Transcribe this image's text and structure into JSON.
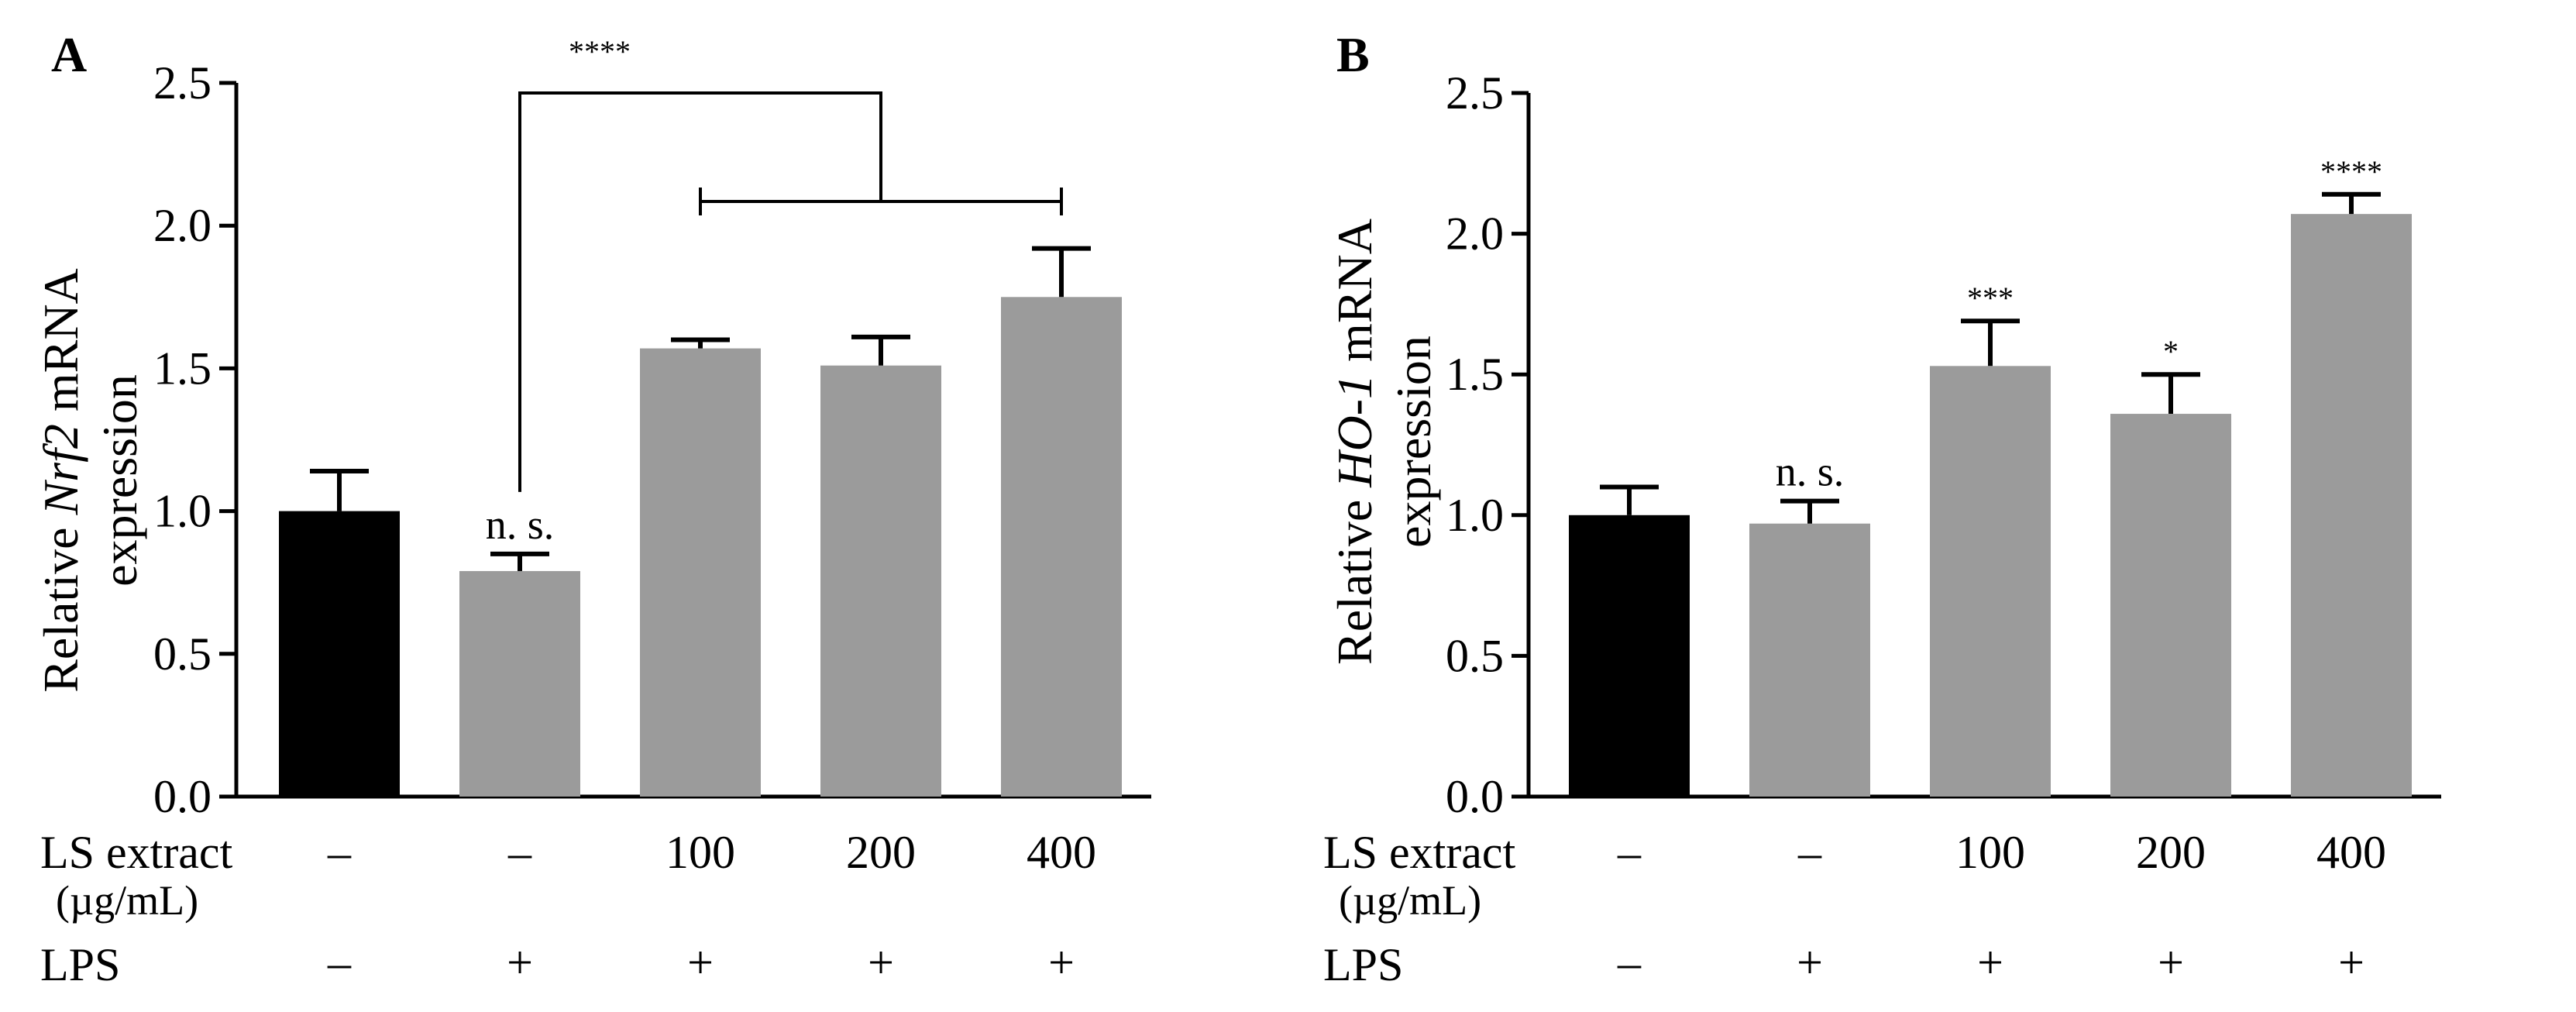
{
  "chart_data": [
    {
      "type": "bar",
      "panel": "A",
      "ylabel_pre": "Relative ",
      "ylabel_gene": "Nrf2",
      "ylabel_post": " mRNA",
      "ylabel_line2": "expression",
      "ylim": [
        0,
        2.5
      ],
      "yticks": [
        "0.0",
        "0.5",
        "1.0",
        "1.5",
        "2.0",
        "2.5"
      ],
      "categories": [
        "1",
        "2",
        "3",
        "4",
        "5"
      ],
      "values": [
        1.0,
        0.79,
        1.57,
        1.51,
        1.75
      ],
      "errors": [
        0.14,
        0.06,
        0.03,
        0.1,
        0.17
      ],
      "colors": [
        "#000000",
        "#9b9b9b",
        "#9b9b9b",
        "#9b9b9b",
        "#9b9b9b"
      ],
      "bar_labels": [
        "",
        "n. s.",
        "",
        "",
        ""
      ],
      "bracket_label": "****",
      "ls_row_label": "LS extract",
      "ls_unit": "(µg/mL)",
      "ls_values": [
        "–",
        "–",
        "100",
        "200",
        "400"
      ],
      "lps_row_label": "LPS",
      "lps_values": [
        "–",
        "+",
        "+",
        "+",
        "+"
      ]
    },
    {
      "type": "bar",
      "panel": "B",
      "ylabel_pre": "Relative ",
      "ylabel_gene": "HO-1",
      "ylabel_post": " mRNA",
      "ylabel_line2": "expression",
      "ylim": [
        0,
        2.5
      ],
      "yticks": [
        "0.0",
        "0.5",
        "1.0",
        "1.5",
        "2.0",
        "2.5"
      ],
      "categories": [
        "1",
        "2",
        "3",
        "4",
        "5"
      ],
      "values": [
        1.0,
        0.97,
        1.53,
        1.36,
        2.07
      ],
      "errors": [
        0.1,
        0.08,
        0.16,
        0.14,
        0.07
      ],
      "colors": [
        "#000000",
        "#9b9b9b",
        "#9b9b9b",
        "#9b9b9b",
        "#9b9b9b"
      ],
      "bar_labels": [
        "",
        "n. s.",
        "***",
        "*",
        "****"
      ],
      "ls_row_label": "LS extract",
      "ls_unit": "(µg/mL)",
      "ls_values": [
        "–",
        "–",
        "100",
        "200",
        "400"
      ],
      "lps_row_label": "LPS",
      "lps_values": [
        "–",
        "+",
        "+",
        "+",
        "+"
      ]
    }
  ]
}
